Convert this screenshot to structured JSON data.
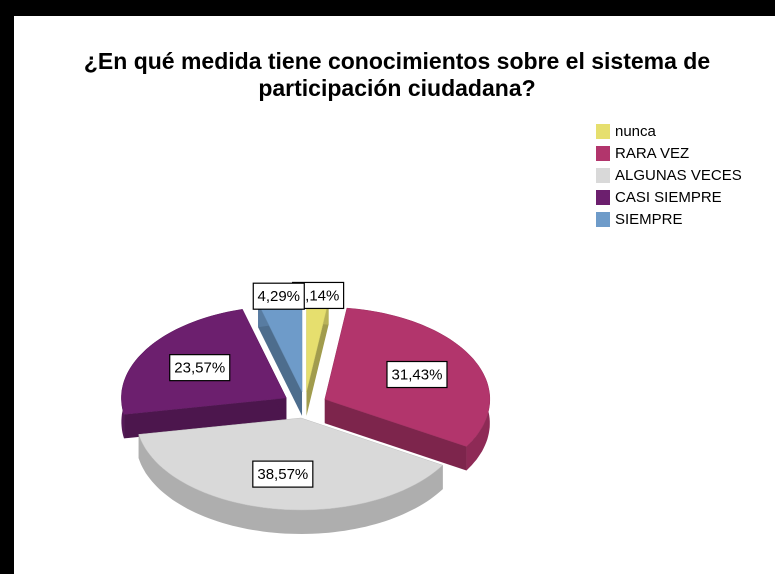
{
  "chart_data": {
    "type": "pie3d",
    "title": "¿En qué medida tiene conocimientos sobre el sistema de participación ciudadana?",
    "categories": [
      "nunca",
      "RARA VEZ",
      "ALGUNAS VECES",
      "CASI SIEMPRE",
      "SIEMPRE"
    ],
    "values": [
      2.14,
      31.43,
      38.57,
      23.57,
      4.29
    ],
    "value_labels": [
      "2,14%",
      "31,43%",
      "38,57%",
      "23,57%",
      "4,29%"
    ],
    "colors": [
      "#e6df6e",
      "#b2356c",
      "#d9d9d9",
      "#6c1f6e",
      "#6e9bc9"
    ],
    "legend": "top-right"
  }
}
